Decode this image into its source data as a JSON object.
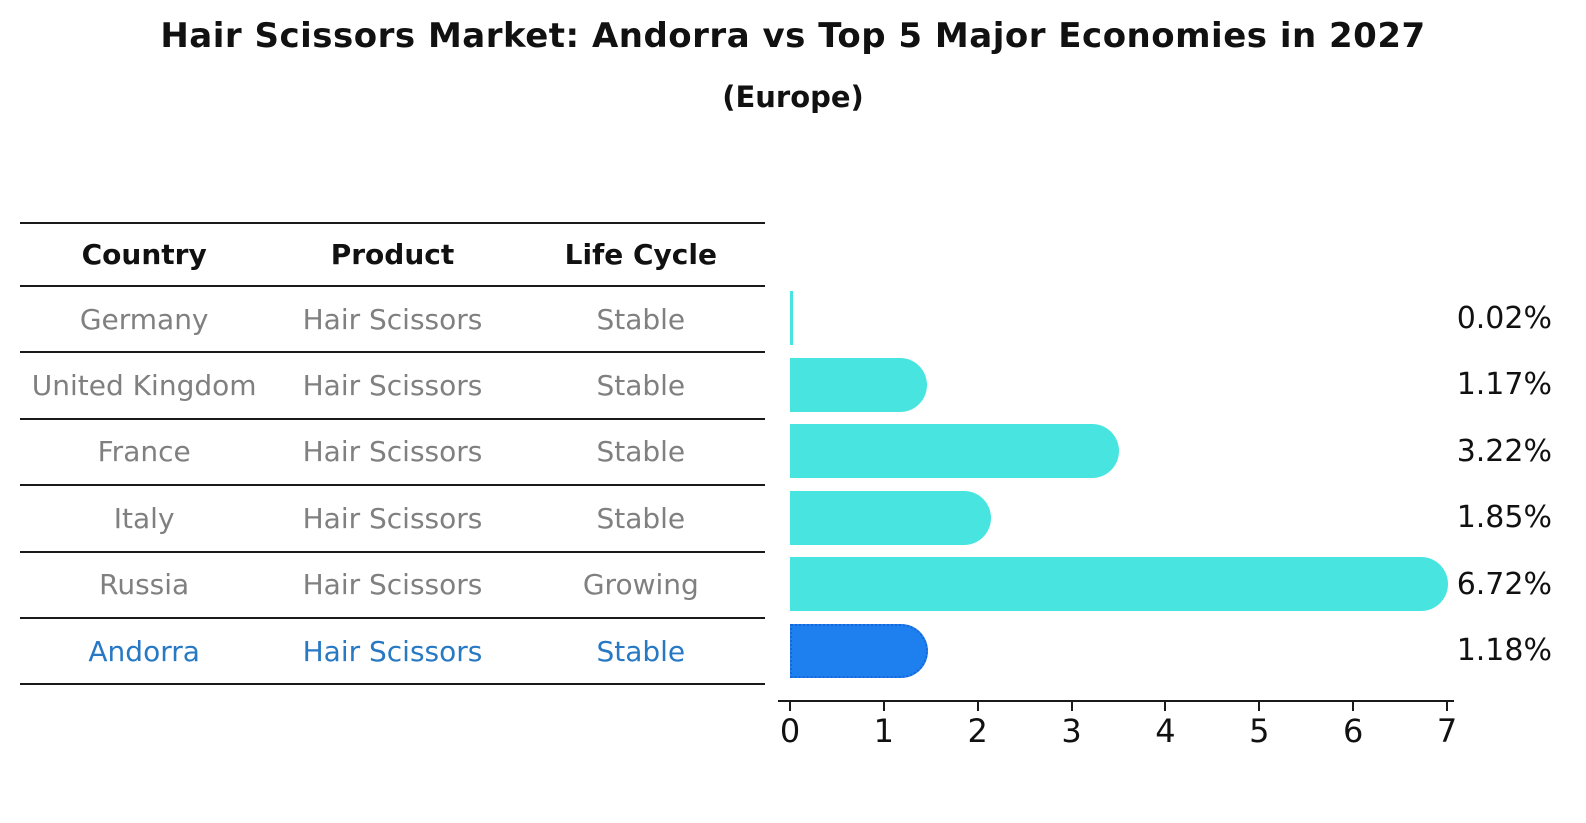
{
  "title": "Hair Scissors Market: Andorra vs Top 5 Major Economies in 2027",
  "subtitle": "(Europe)",
  "table": {
    "headers": [
      "Country",
      "Product",
      "Life Cycle"
    ],
    "rows": [
      {
        "country": "Germany",
        "product": "Hair Scissors",
        "life_cycle": "Stable",
        "highlight": false
      },
      {
        "country": "United Kingdom",
        "product": "Hair Scissors",
        "life_cycle": "Stable",
        "highlight": false
      },
      {
        "country": "France",
        "product": "Hair Scissors",
        "life_cycle": "Stable",
        "highlight": false
      },
      {
        "country": "Italy",
        "product": "Hair Scissors",
        "life_cycle": "Stable",
        "highlight": false
      },
      {
        "country": "Russia",
        "product": "Hair Scissors",
        "life_cycle": "Growing",
        "highlight": false
      },
      {
        "country": "Andorra",
        "product": "Hair Scissors",
        "life_cycle": "Stable",
        "highlight": true
      }
    ]
  },
  "chart_data": {
    "type": "bar",
    "orientation": "horizontal",
    "title": "Hair Scissors Market: Andorra vs Top 5 Major Economies in 2027 (Europe)",
    "categories": [
      "Germany",
      "United Kingdom",
      "France",
      "Italy",
      "Russia",
      "Andorra"
    ],
    "values": [
      0.02,
      1.17,
      3.22,
      1.85,
      6.72,
      1.18
    ],
    "value_labels": [
      "0.02%",
      "1.17%",
      "3.22%",
      "1.85%",
      "6.72%",
      "1.18%"
    ],
    "xlim": [
      0,
      7
    ],
    "xticks": [
      0,
      1,
      2,
      3,
      4,
      5,
      6,
      7
    ],
    "grid": false,
    "legend": false,
    "highlight_index": 5,
    "bar_color": "#47E4E0",
    "highlight_color": "#1E7FEF"
  },
  "colors": {
    "bar_cyan": "#47E4E0",
    "bar_blue": "#1E7FEF",
    "highlight_border": "#1667D9",
    "highlight_text": "#2779C4",
    "row_text": "#808080",
    "line": "#1a1a1a"
  }
}
